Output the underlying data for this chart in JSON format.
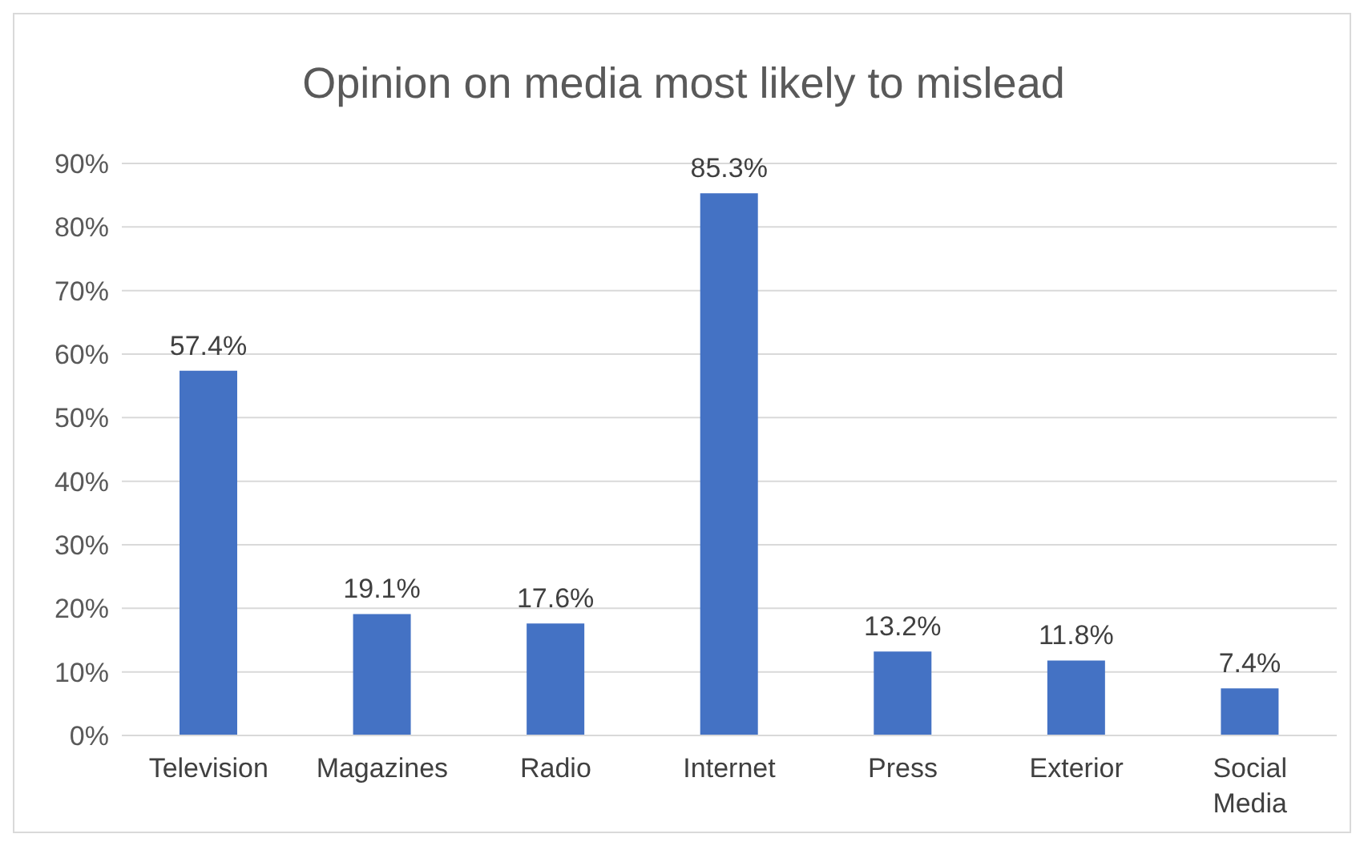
{
  "chart_data": {
    "type": "bar",
    "title": "Opinion on media most likely to mislead",
    "categories": [
      "Television",
      "Magazines",
      "Radio",
      "Internet",
      "Press",
      "Exterior",
      "Social Media"
    ],
    "values": [
      57.4,
      19.1,
      17.6,
      85.3,
      13.2,
      11.8,
      7.4
    ],
    "value_labels": [
      "57.4%",
      "19.1%",
      "17.6%",
      "85.3%",
      "13.2%",
      "11.8%",
      "7.4%"
    ],
    "color": "#4472c4",
    "ylim": [
      0,
      90
    ],
    "yticks": [
      {
        "value": 0,
        "label": "0%"
      },
      {
        "value": 10,
        "label": "10%"
      },
      {
        "value": 20,
        "label": "20%"
      },
      {
        "value": 30,
        "label": "30%"
      },
      {
        "value": 40,
        "label": "40%"
      },
      {
        "value": 50,
        "label": "50%"
      },
      {
        "value": 60,
        "label": "60%"
      },
      {
        "value": 70,
        "label": "70%"
      },
      {
        "value": 80,
        "label": "80%"
      },
      {
        "value": 90,
        "label": "90%"
      }
    ],
    "grid": "y"
  }
}
